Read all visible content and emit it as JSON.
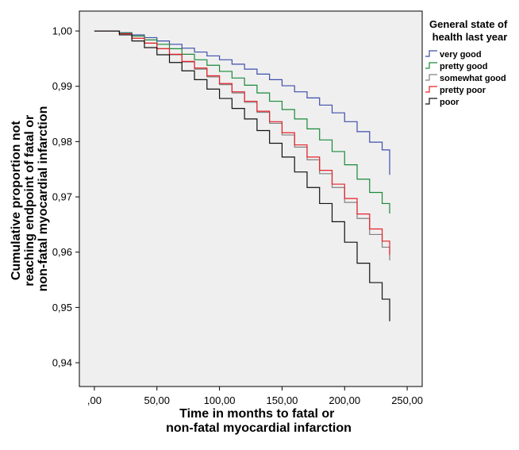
{
  "chart_data": {
    "type": "line",
    "subtype": "kaplan-meier step",
    "title": "",
    "xlabel": "Time in months to fatal or non-fatal myocardial infarction",
    "ylabel": "Cumulative proportion not reaching endpoint of fatal or non-fatal myocardial infarction",
    "xlim": [
      -12,
      262
    ],
    "ylim": [
      0.9357,
      1.0036
    ],
    "x_ticks": [
      0,
      50,
      100,
      150,
      200,
      250
    ],
    "x_tick_labels": [
      ",00",
      "50,00",
      "100,00",
      "150,00",
      "200,00",
      "250,00"
    ],
    "y_ticks": [
      0.94,
      0.95,
      0.96,
      0.97,
      0.98,
      0.99,
      1.0
    ],
    "y_tick_labels": [
      "0,94",
      "0,95",
      "0,96",
      "0,97",
      "0,98",
      "0,99",
      "1,00"
    ],
    "plot_background": "#efefef",
    "grid": false,
    "legend": {
      "title": "General state of health last year",
      "position": "right"
    },
    "x": [
      0,
      14,
      20,
      30,
      40,
      50,
      60,
      70,
      80,
      90,
      100,
      110,
      120,
      130,
      140,
      150,
      160,
      170,
      180,
      190,
      200,
      210,
      220,
      230,
      236
    ],
    "series": [
      {
        "name": "very good",
        "color": "#3f4faa",
        "values": [
          1.0,
          1.0,
          0.9997,
          0.9993,
          0.9988,
          0.9982,
          0.9976,
          0.9969,
          0.9962,
          0.9955,
          0.9948,
          0.994,
          0.9931,
          0.9922,
          0.9912,
          0.9901,
          0.989,
          0.9879,
          0.9866,
          0.9852,
          0.9836,
          0.9818,
          0.9799,
          0.9785,
          0.974
        ]
      },
      {
        "name": "pretty good",
        "color": "#1a8a3a",
        "values": [
          1.0,
          1.0,
          0.9996,
          0.9991,
          0.9984,
          0.9976,
          0.9968,
          0.9958,
          0.9948,
          0.9938,
          0.9927,
          0.9915,
          0.9902,
          0.9888,
          0.9873,
          0.9858,
          0.9841,
          0.9823,
          0.9803,
          0.9782,
          0.9758,
          0.9732,
          0.9708,
          0.9688,
          0.967
        ]
      },
      {
        "name": "somewhat good",
        "color": "#808080",
        "values": [
          1.0,
          1.0,
          0.9995,
          0.9987,
          0.9978,
          0.9968,
          0.9957,
          0.9944,
          0.9931,
          0.9917,
          0.9903,
          0.9888,
          0.9871,
          0.9853,
          0.9833,
          0.9812,
          0.979,
          0.9767,
          0.9742,
          0.9717,
          0.969,
          0.9661,
          0.9632,
          0.9609,
          0.9585
        ]
      },
      {
        "name": "pretty poor",
        "color": "#e8202a",
        "values": [
          1.0,
          1.0,
          0.9995,
          0.9987,
          0.9978,
          0.9968,
          0.9958,
          0.9945,
          0.9933,
          0.9919,
          0.9905,
          0.989,
          0.9873,
          0.9855,
          0.9836,
          0.9816,
          0.9794,
          0.9772,
          0.9748,
          0.9723,
          0.9697,
          0.9669,
          0.9642,
          0.962,
          0.9595
        ]
      },
      {
        "name": "poor",
        "color": "#111111",
        "values": [
          1.0,
          1.0,
          0.9993,
          0.9982,
          0.997,
          0.9957,
          0.9943,
          0.9928,
          0.9912,
          0.9895,
          0.9878,
          0.986,
          0.9841,
          0.982,
          0.9797,
          0.9772,
          0.9745,
          0.9717,
          0.9688,
          0.9655,
          0.9618,
          0.958,
          0.9545,
          0.9515,
          0.9475
        ]
      }
    ]
  }
}
